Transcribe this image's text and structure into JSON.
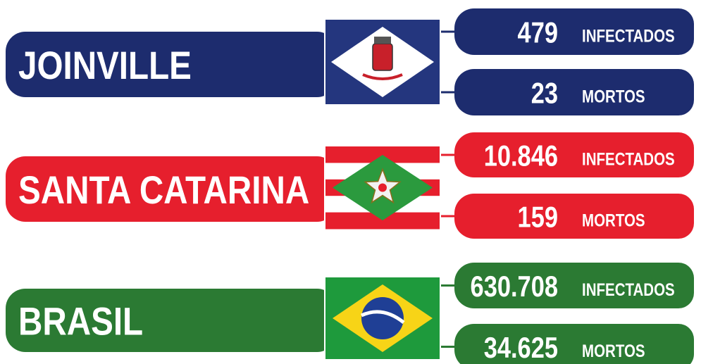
{
  "regions": [
    {
      "name": "JOINVILLE",
      "infected": "479",
      "infected_label": "INFECTADOS",
      "deaths": "23",
      "deaths_label": "MORTOS"
    },
    {
      "name": "SANTA CATARINA",
      "infected": "10.846",
      "infected_label": "INFECTADOS",
      "deaths": "159",
      "deaths_label": "MORTOS"
    },
    {
      "name": "BRASIL",
      "infected": "630.708",
      "infected_label": "INFECTADOS",
      "deaths": "34.625",
      "deaths_label": "MORTOS"
    }
  ]
}
